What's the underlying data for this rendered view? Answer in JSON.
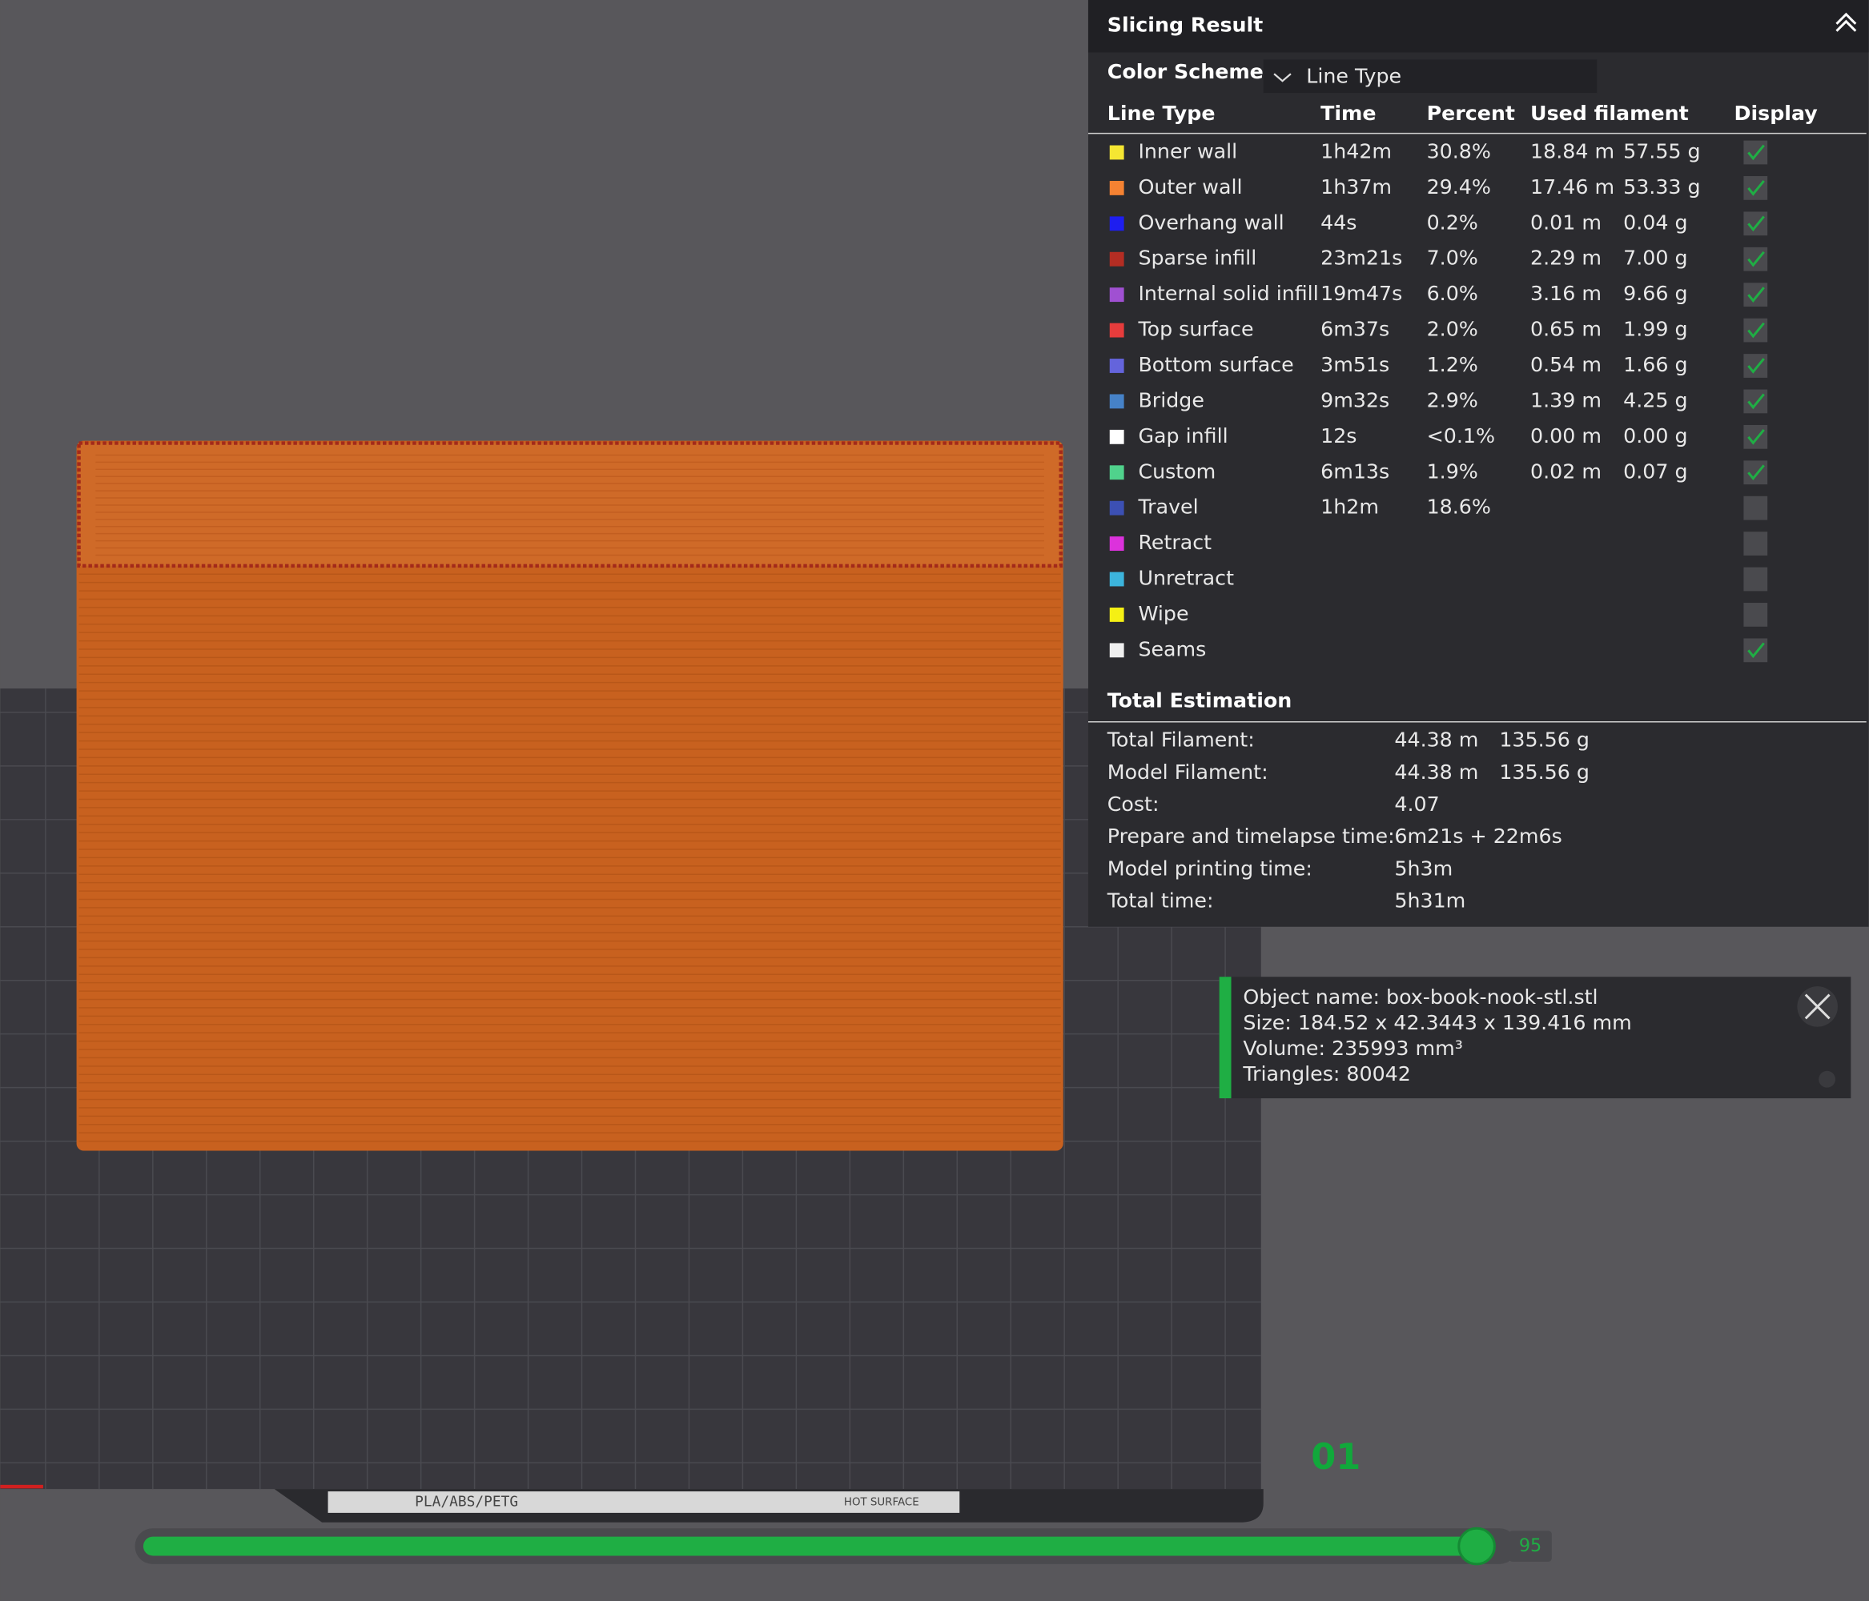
{
  "panel": {
    "title": "Slicing Result",
    "color_scheme_label": "Color Scheme",
    "color_scheme_value": "Line Type",
    "headers": [
      "Line Type",
      "Time",
      "Percent",
      "Used filament",
      "Display"
    ],
    "rows": [
      {
        "name": "Inner wall",
        "color": "#f5e632",
        "time": "1h42m",
        "percent": "30.8%",
        "length": "18.84 m",
        "weight": "57.55 g",
        "display": true
      },
      {
        "name": "Outer wall",
        "color": "#f58232",
        "time": "1h37m",
        "percent": "29.4%",
        "length": "17.46 m",
        "weight": "53.33 g",
        "display": true
      },
      {
        "name": "Overhang wall",
        "color": "#1e1ef0",
        "time": "44s",
        "percent": "0.2%",
        "length": "0.01 m",
        "weight": "0.04 g",
        "display": true
      },
      {
        "name": "Sparse infill",
        "color": "#b42d23",
        "time": "23m21s",
        "percent": "7.0%",
        "length": "2.29 m",
        "weight": "7.00 g",
        "display": true
      },
      {
        "name": "Internal solid infill",
        "color": "#a050d2",
        "time": "19m47s",
        "percent": "6.0%",
        "length": "3.16 m",
        "weight": "9.66 g",
        "display": true
      },
      {
        "name": "Top surface",
        "color": "#e63c3c",
        "time": "6m37s",
        "percent": "2.0%",
        "length": "0.65 m",
        "weight": "1.99 g",
        "display": true
      },
      {
        "name": "Bottom surface",
        "color": "#6464dc",
        "time": "3m51s",
        "percent": "1.2%",
        "length": "0.54 m",
        "weight": "1.66 g",
        "display": true
      },
      {
        "name": "Bridge",
        "color": "#4682c8",
        "time": "9m32s",
        "percent": "2.9%",
        "length": "1.39 m",
        "weight": "4.25 g",
        "display": true
      },
      {
        "name": "Gap infill",
        "color": "#ffffff",
        "time": "12s",
        "percent": "<0.1%",
        "length": "0.00 m",
        "weight": "0.00 g",
        "display": true
      },
      {
        "name": "Custom",
        "color": "#50d28c",
        "time": "6m13s",
        "percent": "1.9%",
        "length": "0.02 m",
        "weight": "0.07 g",
        "display": true
      },
      {
        "name": "Travel",
        "color": "#3c50b4",
        "time": "1h2m",
        "percent": "18.6%",
        "display": false
      },
      {
        "name": "Retract",
        "color": "#dc32dc",
        "display": false
      },
      {
        "name": "Unretract",
        "color": "#3cb4dc",
        "display": false
      },
      {
        "name": "Wipe",
        "color": "#f5f014",
        "display": false
      },
      {
        "name": "Seams",
        "color": "#f0f0f0",
        "display": true
      }
    ],
    "total_title": "Total Estimation",
    "totals": [
      {
        "label": "Total Filament:",
        "values": [
          "44.38 m",
          "135.56 g"
        ]
      },
      {
        "label": "Model Filament:",
        "values": [
          "44.38 m",
          "135.56 g"
        ]
      },
      {
        "label": "Cost:",
        "values": [
          "4.07"
        ]
      },
      {
        "label": "Prepare and timelapse time:",
        "values": [
          "6m21s + 22m6s"
        ]
      },
      {
        "label": "Model printing time:",
        "values": [
          "5h3m"
        ]
      },
      {
        "label": "Total time:",
        "values": [
          "5h31m"
        ]
      }
    ]
  },
  "object_info": [
    "Object name: box-book-nook-stl.stl",
    "Size: 184.52 x 42.3443 x 139.416 mm",
    "Volume: 235993 mm³",
    "Triangles: 80042"
  ],
  "plate": {
    "filament": "PLA/ABS/PETG",
    "surface": "HOT SURFACE"
  },
  "layer_label": "01",
  "slider_value": "95"
}
